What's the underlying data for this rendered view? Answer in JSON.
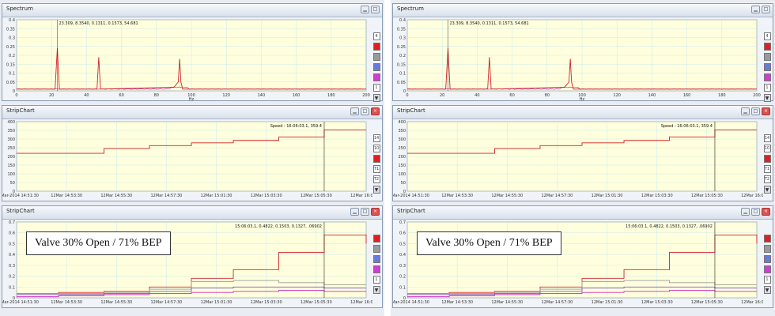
{
  "panes": [
    {
      "id": "left",
      "spectrum": {
        "title": "Spectrum",
        "annotation": "23.309, 8.3540, 0.1311, 0.1573, 54.681",
        "y_ticks": [
          "0.4",
          "0.35",
          "0.3",
          "0.25",
          "0.2",
          "0.15",
          "0.1",
          "0.05",
          "0"
        ],
        "x_ticks": [
          "0",
          "20",
          "40",
          "60",
          "80",
          "100",
          "120",
          "140",
          "160",
          "180",
          "200"
        ],
        "x_label": "Hz",
        "legend": [
          "4",
          "",
          "",
          "",
          "",
          "1"
        ]
      },
      "strip1": {
        "title": "StripChart",
        "annotation": "Speed : 16:06:03.1, 359.4",
        "y_ticks": [
          "400",
          "350",
          "300",
          "250",
          "200",
          "150",
          "100",
          "50",
          "0"
        ],
        "x_ticks": [
          "12-Mar-2014 14:51:30",
          "12Mar 14:53:30",
          "12Mar 14:55:30",
          "12Mar 14:57:30",
          "12Mar 15:01:30",
          "12Mar 15:03:30",
          "12Mar 15:05:30",
          "12Mar 16:07:30"
        ],
        "legend": [
          "14",
          "10",
          "",
          "T1",
          "T2"
        ]
      },
      "strip2": {
        "title": "StripChart",
        "annotation": "15:06:03.1, 0.4822, 0.1503, 0.1327, .06902",
        "y_ticks": [
          "0.7",
          "0.6",
          "0.5",
          "0.4",
          "0.3",
          "0.2",
          "0.1",
          "0"
        ],
        "x_ticks": [
          "12-Mar-2014 14:51:30",
          "12Mar 14:53:30",
          "12Mar 14:55:30",
          "12Mar 14:57:30",
          "12Mar 15:01:30",
          "12Mar 15:03:30",
          "12Mar 15:05:30",
          "12Mar 16:07:30"
        ],
        "legend": [
          "",
          "",
          "",
          "",
          "1"
        ],
        "overlay": "Valve 30% Open / 71% BEP"
      }
    },
    {
      "id": "right",
      "spectrum": {
        "title": "Spectrum",
        "annotation": "23.309, 8.3540, 0.1311, 0.1573, 54.681",
        "y_ticks": [
          "0.4",
          "0.35",
          "0.3",
          "0.25",
          "0.2",
          "0.15",
          "0.1",
          "0.05",
          "0"
        ],
        "x_ticks": [
          "0",
          "20",
          "40",
          "60",
          "80",
          "100",
          "120",
          "140",
          "160",
          "180",
          "200"
        ],
        "x_label": "Hz",
        "legend": [
          "4",
          "",
          "",
          "",
          "",
          "1"
        ]
      },
      "strip1": {
        "title": "StripChart",
        "annotation": "Speed : 16:06:03.1, 359.4",
        "y_ticks": [
          "400",
          "350",
          "300",
          "250",
          "200",
          "150",
          "100",
          "50",
          "0"
        ],
        "x_ticks": [
          "12-Mar-2014 14:51:30",
          "12Mar 14:53:30",
          "12Mar 14:55:30",
          "12Mar 14:57:30",
          "12Mar 15:01:30",
          "12Mar 15:03:30",
          "12Mar 15:05:30",
          "12Mar 16:07:30"
        ],
        "legend": [
          "14",
          "10",
          "",
          "T1",
          "T2"
        ]
      },
      "strip2": {
        "title": "StripChart",
        "annotation": "15:06:03.1, 0.4822, 0.1503, 0.1327, .06902",
        "y_ticks": [
          "0.7",
          "0.6",
          "0.5",
          "0.4",
          "0.3",
          "0.2",
          "0.1",
          "0"
        ],
        "x_ticks": [
          "12-Mar-2014 14:51:30",
          "12Mar 14:53:30",
          "12Mar 14:55:30",
          "12Mar 14:57:30",
          "12Mar 15:01:30",
          "12Mar 15:03:30",
          "12Mar 15:05:30",
          "12Mar 16:07:30"
        ],
        "legend": [
          "",
          "",
          "",
          "",
          "1"
        ],
        "overlay": "Valve 30% Open / 71% BEP"
      }
    }
  ],
  "colors": {
    "plot_bg": "#ffffdd",
    "grid": "#c8e8ee",
    "red": "#d2232a",
    "magenta": "#cc2bcc",
    "gray": "#9a9a9a",
    "purple": "#7a5bbf",
    "legend_red": "#e02020",
    "legend_gray": "#9a9a9a",
    "legend_blue": "#6a7ad8",
    "legend_magenta": "#d23cd2"
  },
  "chart_data": [
    {
      "type": "line",
      "title": "Spectrum",
      "xlabel": "Hz",
      "ylabel": "",
      "xlim": [
        0,
        200
      ],
      "ylim": [
        0,
        0.4
      ],
      "series": [
        {
          "x": [
            0,
            22,
            23.3,
            24.5,
            46,
            47,
            48,
            90,
            92.5,
            93.3,
            94,
            95,
            200
          ],
          "y": [
            0.01,
            0.01,
            0.24,
            0.01,
            0.01,
            0.19,
            0.01,
            0.02,
            0.05,
            0.18,
            0.05,
            0.01,
            0.01
          ]
        }
      ]
    },
    {
      "type": "line",
      "title": "Speed",
      "ylim": [
        0,
        400
      ],
      "x": [
        0,
        0.12,
        0.25,
        0.38,
        0.5,
        0.62,
        0.75,
        0.88,
        1.0
      ],
      "series": [
        {
          "values": [
            218,
            218,
            245,
            262,
            278,
            292,
            312,
            352,
            352
          ]
        }
      ]
    },
    {
      "type": "line",
      "ylim": [
        0,
        0.7
      ],
      "x": [
        0,
        0.12,
        0.25,
        0.38,
        0.5,
        0.62,
        0.75,
        0.88,
        1.0
      ],
      "series": [
        {
          "values": [
            0.04,
            0.05,
            0.06,
            0.1,
            0.18,
            0.26,
            0.42,
            0.58,
            0.5
          ]
        },
        {
          "values": [
            0.04,
            0.04,
            0.05,
            0.08,
            0.15,
            0.16,
            0.14,
            0.12,
            0.12
          ]
        },
        {
          "values": [
            0.03,
            0.03,
            0.04,
            0.06,
            0.09,
            0.1,
            0.1,
            0.09,
            0.09
          ]
        },
        {
          "values": [
            0.01,
            0.02,
            0.03,
            0.04,
            0.05,
            0.06,
            0.07,
            0.06,
            0.06
          ]
        }
      ]
    }
  ]
}
